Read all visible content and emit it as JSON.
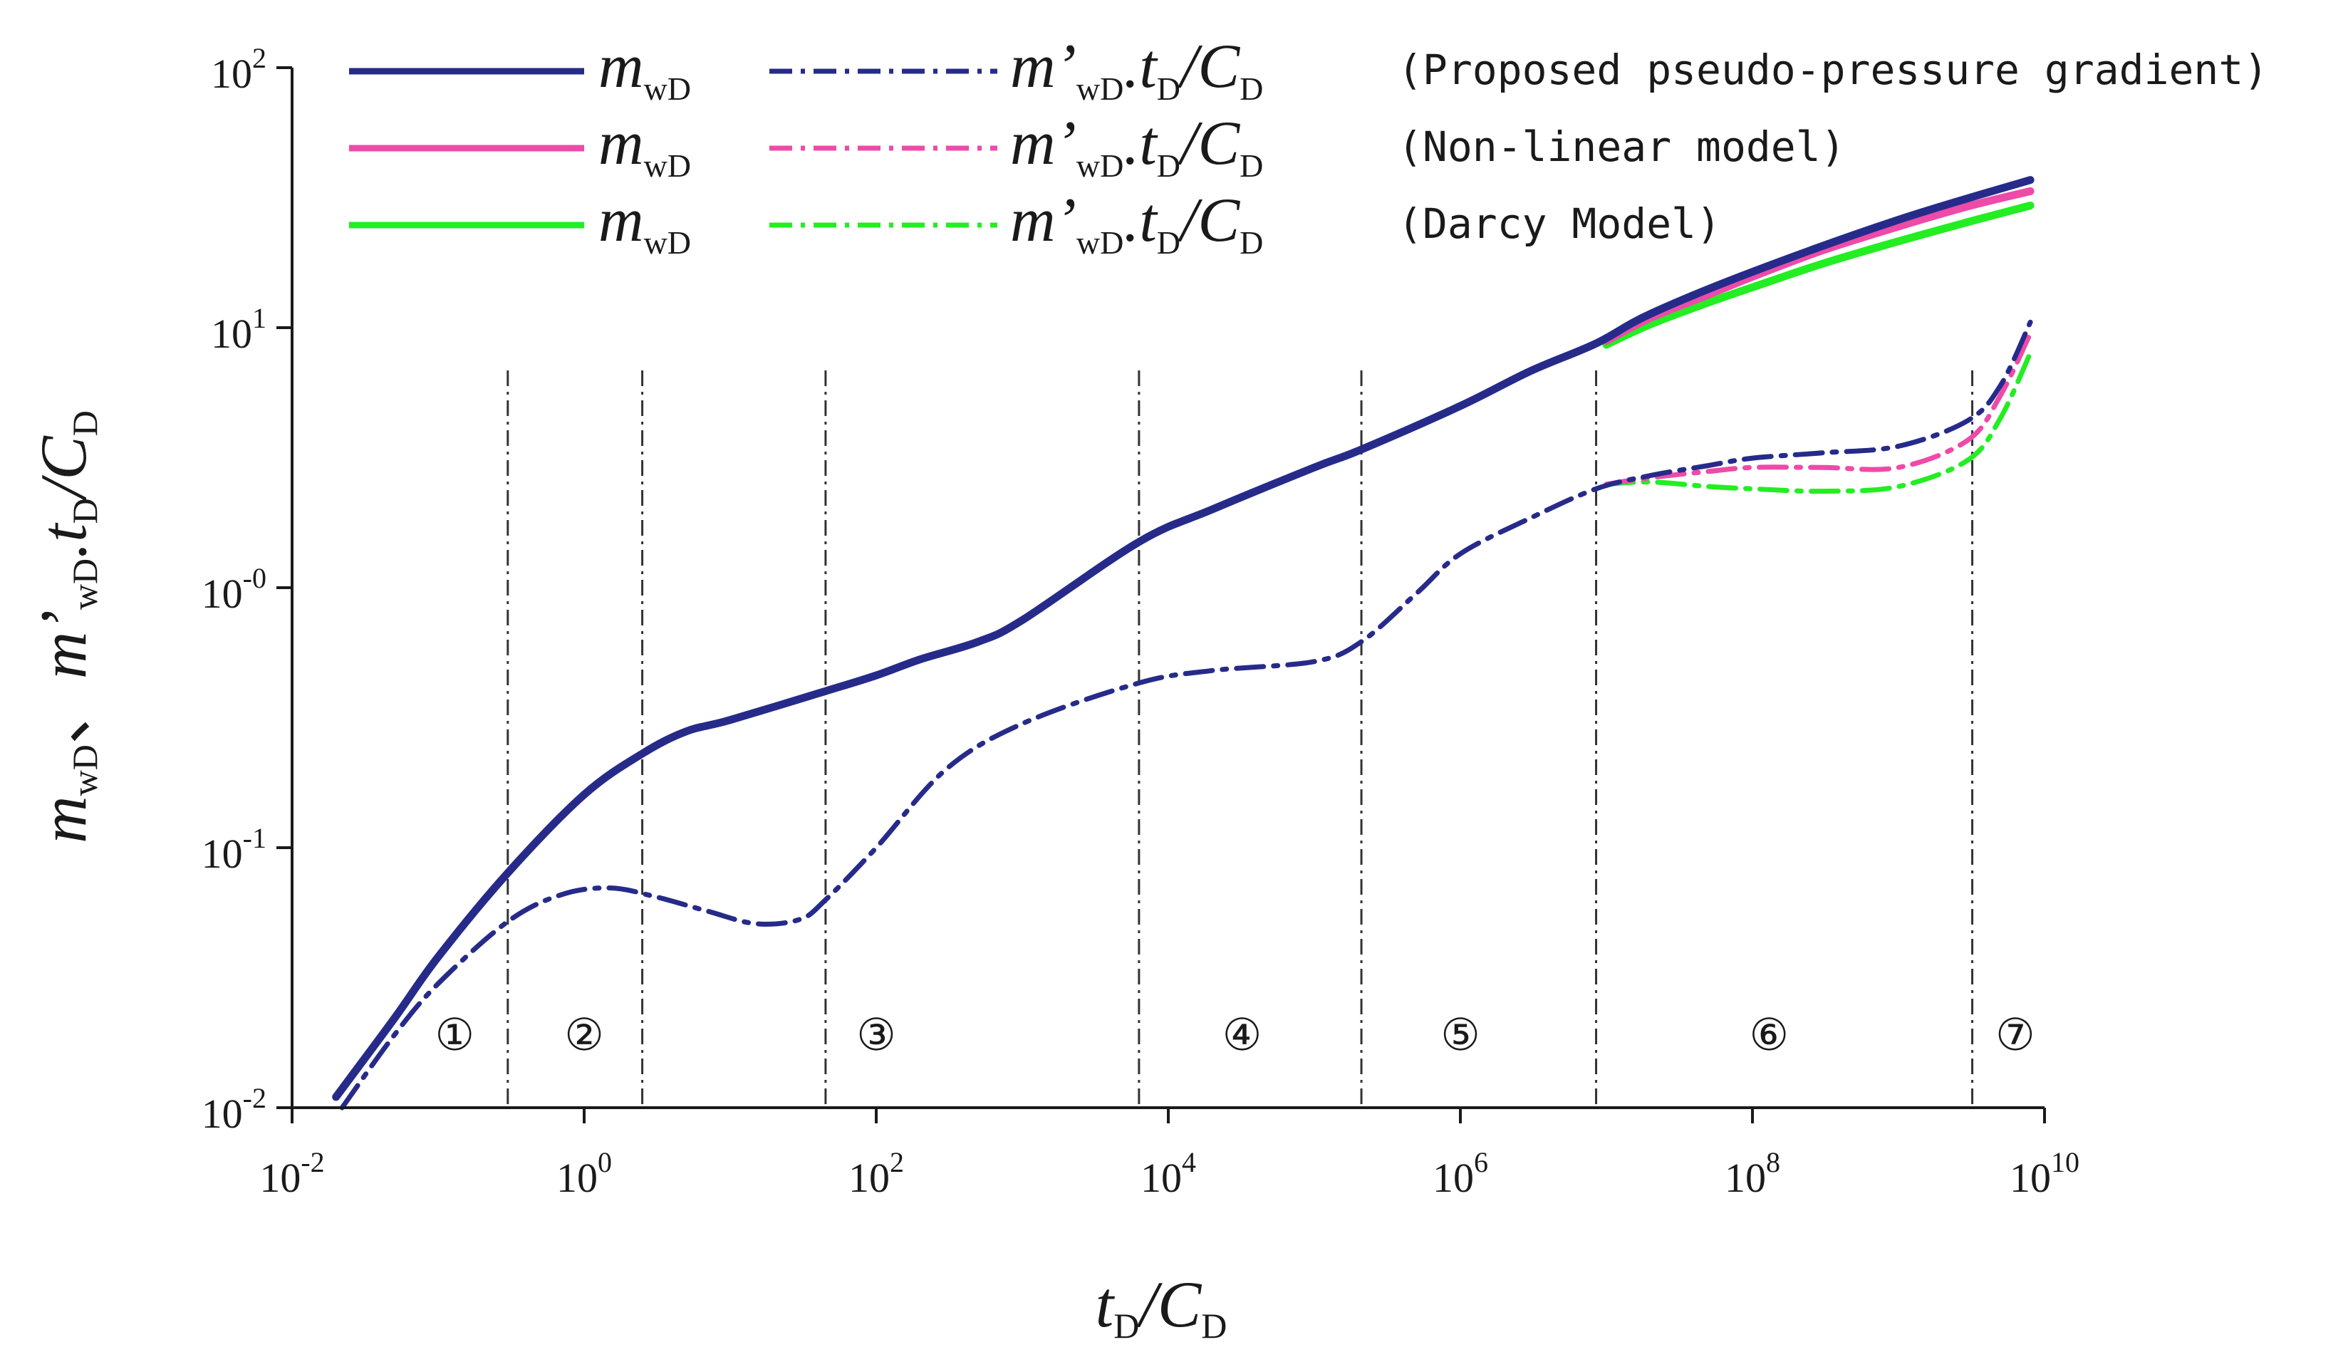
{
  "chart_data": {
    "type": "line",
    "x_scale": "log",
    "y_scale": "log",
    "xlim": [
      0.01,
      10000000000
    ],
    "ylim": [
      0.01,
      100
    ],
    "xlabel": {
      "var": "t",
      "sub": "D",
      "sep": "/",
      "var2": "C",
      "sub2": "D"
    },
    "ylabel": {
      "a": "m",
      "a_sub": "wD",
      "sep": "、",
      "b": "m’",
      "b_sub": "wD",
      "c": ".t",
      "c_sub": "D",
      "d": "/C",
      "d_sub": "D"
    },
    "x_ticks": [
      {
        "value": 0.01,
        "base": "10",
        "exp": "-2"
      },
      {
        "value": 1,
        "base": "10",
        "exp": "0"
      },
      {
        "value": 100,
        "base": "10",
        "exp": "2"
      },
      {
        "value": 10000,
        "base": "10",
        "exp": "4"
      },
      {
        "value": 1000000,
        "base": "10",
        "exp": "6"
      },
      {
        "value": 100000000,
        "base": "10",
        "exp": "8"
      },
      {
        "value": 10000000000,
        "base": "10",
        "exp": "10"
      }
    ],
    "y_ticks": [
      {
        "value": 0.01,
        "base": "10",
        "exp": "-2"
      },
      {
        "value": 0.1,
        "base": "10",
        "exp": "-1"
      },
      {
        "value": 1,
        "base": "10",
        "exp": "-0"
      },
      {
        "value": 10,
        "base": "10",
        "exp": "1"
      },
      {
        "value": 100,
        "base": "10",
        "exp": "2"
      }
    ],
    "region_boundaries": [
      0.3,
      2.5,
      45,
      6300,
      210000,
      8500000,
      3200000000
    ],
    "regions": [
      {
        "label": "①",
        "x": 0.13
      },
      {
        "label": "②",
        "x": 1.0
      },
      {
        "label": "③",
        "x": 100
      },
      {
        "label": "④",
        "x": 32000
      },
      {
        "label": "⑤",
        "x": 1000000
      },
      {
        "label": "⑥",
        "x": 130000000
      },
      {
        "label": "⑦",
        "x": 6300000000
      }
    ],
    "legend": [
      {
        "sym1": "m",
        "sub1": "wD",
        "sym2": "m’",
        "sub2": "wD",
        "sym3": ".t",
        "sub3": "D",
        "sym4": "/C",
        "sub4": "D",
        "paren_open": "(",
        "desc": "Proposed pseudo-pressure gradient",
        "paren_close": ")"
      },
      {
        "sym1": "m",
        "sub1": "wD",
        "sym2": "m’",
        "sub2": "wD",
        "sym3": ".t",
        "sub3": "D",
        "sym4": "/C",
        "sub4": "D",
        "paren_open": "(",
        "desc": "Non-linear model",
        "paren_close": ")"
      },
      {
        "sym1": "m",
        "sub1": "wD",
        "sym2": "m’",
        "sub2": "wD",
        "sym3": ".t",
        "sub3": "D",
        "sym4": "/C",
        "sub4": "D",
        "paren_open": "(",
        "desc": "Darcy Model",
        "paren_close": ")"
      }
    ],
    "series": [
      {
        "name": "m_wD (Darcy Model)",
        "style": "solid",
        "color": "#22ee22",
        "x": [
          10000000,
          20000000,
          50000000,
          100000000,
          300000000,
          1000000000,
          3000000000,
          8000000000
        ],
        "y": [
          8.6,
          10.3,
          12.5,
          14.3,
          17.6,
          21.5,
          25.5,
          29.5
        ]
      },
      {
        "name": "m_wD (Non-linear model)",
        "style": "solid",
        "color": "#ee4aa8",
        "x": [
          10000000,
          20000000,
          50000000,
          100000000,
          300000000,
          1000000000,
          3000000000,
          8000000000
        ],
        "y": [
          8.9,
          10.9,
          13.4,
          15.7,
          19.8,
          24.5,
          29.3,
          33.5
        ]
      },
      {
        "name": "m_wD (Proposed pseudo-pressure gradient)",
        "style": "solid",
        "color": "#262b8a",
        "x": [
          0.02,
          0.05,
          0.1,
          0.3,
          1,
          2.5,
          5,
          10,
          45,
          100,
          200,
          500,
          1000,
          6300,
          20000,
          100000,
          210000,
          1000000,
          3000000,
          8500000,
          20000000,
          100000000,
          1000000000,
          8000000000
        ],
        "y": [
          0.011,
          0.022,
          0.038,
          0.08,
          0.16,
          0.23,
          0.28,
          0.31,
          0.4,
          0.46,
          0.53,
          0.62,
          0.75,
          1.5,
          2.0,
          2.9,
          3.4,
          5.0,
          6.8,
          8.7,
          11.3,
          16.4,
          26.0,
          37.0
        ]
      },
      {
        "name": "m'_wD.t_D/C_D (Darcy Model)",
        "style": "dashdot",
        "color": "#22ee22",
        "x": [
          10000000,
          20000000,
          50000000,
          100000000,
          300000000,
          1000000000,
          3000000000,
          5000000000,
          8000000000
        ],
        "y": [
          2.5,
          2.55,
          2.45,
          2.4,
          2.35,
          2.45,
          3.1,
          4.5,
          8.0
        ]
      },
      {
        "name": "m'_wD.t_D/C_D (Non-linear model)",
        "style": "dashdot",
        "color": "#ee4aa8",
        "x": [
          10000000,
          20000000,
          50000000,
          100000000,
          300000000,
          1000000000,
          3000000000,
          5000000000,
          8000000000
        ],
        "y": [
          2.5,
          2.65,
          2.8,
          2.9,
          2.9,
          2.9,
          3.7,
          5.5,
          9.5
        ]
      },
      {
        "name": "m'_wD.t_D/C_D (Proposed pseudo-pressure gradient)",
        "style": "dashdot",
        "color": "#262b8a",
        "x": [
          0.022,
          0.05,
          0.1,
          0.3,
          0.7,
          1.5,
          3,
          7,
          15,
          30,
          45,
          100,
          300,
          1000,
          6300,
          20000,
          100000,
          210000,
          500000,
          1000000,
          3000000,
          8500000,
          20000000,
          50000000,
          100000000,
          300000000,
          1000000000,
          3000000000,
          5000000000,
          8000000000
        ],
        "y": [
          0.01,
          0.019,
          0.03,
          0.052,
          0.066,
          0.07,
          0.065,
          0.057,
          0.051,
          0.053,
          0.063,
          0.1,
          0.2,
          0.3,
          0.43,
          0.48,
          0.52,
          0.62,
          0.95,
          1.35,
          1.85,
          2.4,
          2.7,
          2.95,
          3.15,
          3.3,
          3.5,
          4.4,
          6.0,
          10.5
        ]
      }
    ]
  }
}
